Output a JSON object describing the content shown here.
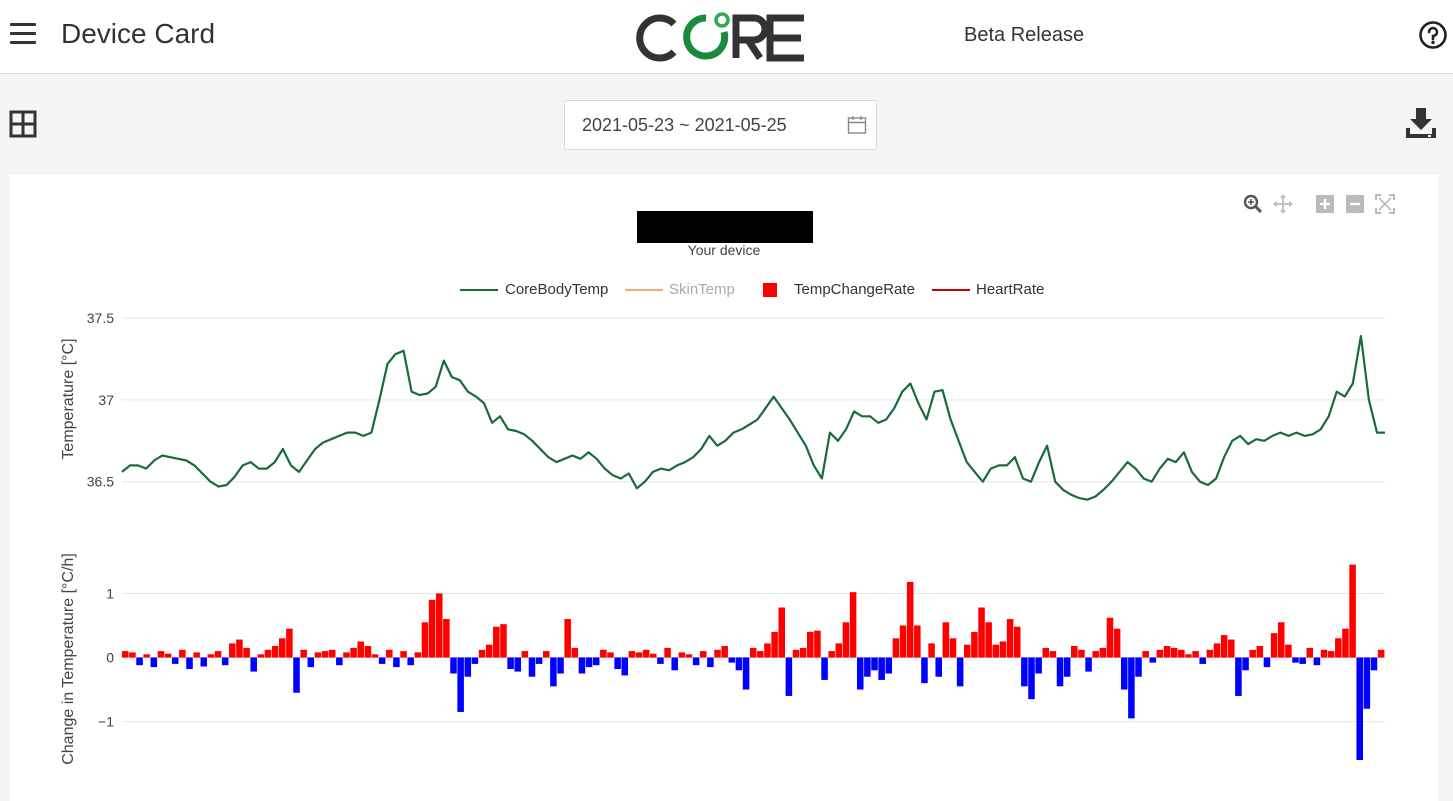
{
  "header": {
    "title": "Device Card",
    "logo_text": "CORE",
    "release": "Beta Release"
  },
  "toolbar": {
    "date_range": "2021-05-23 ~ 2021-05-25"
  },
  "chart": {
    "device_caption": "Your device",
    "legend": [
      {
        "name": "CoreBodyTemp",
        "color": "#1a6b3a",
        "kind": "line",
        "dimmed": false
      },
      {
        "name": "SkinTemp",
        "color": "#f4a97a",
        "kind": "line",
        "dimmed": true
      },
      {
        "name": "TempChangeRate",
        "color": "#ff0000",
        "kind": "square",
        "dimmed": false
      },
      {
        "name": "HeartRate",
        "color": "#cc0000",
        "kind": "line",
        "dimmed": false
      }
    ]
  },
  "chart_data": [
    {
      "type": "line",
      "ylabel": "Temperature [°C]",
      "ylim": [
        36.37,
        37.58
      ],
      "yticks": [
        36.5,
        37,
        37.5
      ],
      "grid": true,
      "series": [
        {
          "name": "CoreBodyTemp",
          "color": "#1a6b3a",
          "values": [
            36.56,
            36.6,
            36.6,
            36.58,
            36.63,
            36.66,
            36.65,
            36.64,
            36.63,
            36.6,
            36.55,
            36.5,
            36.47,
            36.48,
            36.53,
            36.6,
            36.62,
            36.58,
            36.58,
            36.62,
            36.7,
            36.6,
            36.56,
            36.63,
            36.7,
            36.74,
            36.76,
            36.78,
            36.8,
            36.8,
            36.78,
            36.8,
            37.0,
            37.22,
            37.28,
            37.3,
            37.05,
            37.03,
            37.04,
            37.08,
            37.24,
            37.14,
            37.12,
            37.05,
            37.02,
            36.98,
            36.86,
            36.9,
            36.82,
            36.81,
            36.79,
            36.75,
            36.7,
            36.65,
            36.62,
            36.64,
            36.66,
            36.64,
            36.68,
            36.64,
            36.58,
            36.54,
            36.52,
            36.55,
            36.46,
            36.5,
            36.56,
            36.58,
            36.57,
            36.6,
            36.62,
            36.65,
            36.7,
            36.78,
            36.72,
            36.75,
            36.8,
            36.82,
            36.85,
            36.88,
            36.95,
            37.02,
            36.95,
            36.88,
            36.8,
            36.72,
            36.6,
            36.52,
            36.8,
            36.75,
            36.82,
            36.93,
            36.9,
            36.9,
            36.86,
            36.88,
            36.95,
            37.05,
            37.1,
            36.98,
            36.88,
            37.05,
            37.06,
            36.88,
            36.75,
            36.62,
            36.56,
            36.5,
            36.58,
            36.6,
            36.6,
            36.65,
            36.52,
            36.5,
            36.62,
            36.72,
            36.5,
            36.45,
            36.42,
            36.4,
            36.39,
            36.41,
            36.45,
            36.5,
            36.56,
            36.62,
            36.58,
            36.52,
            36.5,
            36.58,
            36.64,
            36.62,
            36.68,
            36.56,
            36.5,
            36.48,
            36.52,
            36.65,
            36.75,
            36.78,
            36.73,
            36.76,
            36.75,
            36.78,
            36.8,
            36.78,
            36.8,
            36.78,
            36.79,
            36.82,
            36.9,
            37.05,
            37.02,
            37.1,
            37.39,
            37.0,
            36.8,
            36.8
          ]
        }
      ]
    },
    {
      "type": "bar",
      "ylabel": "Change in Temperature [°C/h]",
      "ylim": [
        -1.6,
        1.6
      ],
      "yticks": [
        -1,
        0,
        1
      ],
      "grid": true,
      "series": [
        {
          "name": "TempChangeRate",
          "color_positive": "#ff0000",
          "color_negative": "#0000ff",
          "values": [
            0.1,
            0.08,
            -0.12,
            0.05,
            -0.15,
            0.1,
            0.06,
            -0.1,
            0.12,
            -0.18,
            0.08,
            -0.14,
            0.05,
            0.1,
            -0.12,
            0.22,
            0.28,
            0.15,
            -0.22,
            0.05,
            0.12,
            0.18,
            0.3,
            0.45,
            -0.55,
            0.12,
            -0.15,
            0.08,
            0.1,
            0.12,
            -0.12,
            0.08,
            0.15,
            0.25,
            0.18,
            0.05,
            -0.1,
            0.12,
            -0.15,
            0.1,
            -0.12,
            0.08,
            0.55,
            0.9,
            1.0,
            0.6,
            -0.25,
            -0.85,
            -0.3,
            -0.1,
            0.12,
            0.2,
            0.48,
            0.52,
            -0.18,
            -0.22,
            0.1,
            -0.3,
            -0.1,
            0.1,
            -0.45,
            -0.25,
            0.6,
            0.15,
            -0.25,
            -0.15,
            -0.12,
            0.12,
            0.08,
            -0.18,
            -0.28,
            0.1,
            0.08,
            0.12,
            0.06,
            -0.1,
            0.15,
            -0.2,
            0.08,
            0.05,
            -0.12,
            0.1,
            -0.15,
            0.12,
            0.18,
            -0.08,
            -0.2,
            -0.5,
            0.15,
            0.1,
            0.22,
            0.4,
            0.78,
            -0.6,
            0.12,
            0.15,
            0.4,
            0.42,
            -0.35,
            0.1,
            0.22,
            0.55,
            1.02,
            -0.5,
            -0.3,
            -0.2,
            -0.35,
            -0.25,
            0.3,
            0.5,
            1.18,
            0.5,
            -0.4,
            0.22,
            -0.3,
            0.55,
            0.3,
            -0.45,
            0.2,
            0.4,
            0.78,
            0.55,
            0.2,
            0.25,
            0.6,
            0.48,
            -0.45,
            -0.65,
            -0.25,
            0.15,
            0.1,
            -0.45,
            -0.3,
            0.18,
            0.12,
            -0.22,
            0.1,
            0.15,
            0.62,
            0.45,
            -0.5,
            -0.95,
            -0.3,
            0.1,
            -0.08,
            0.12,
            0.18,
            0.15,
            0.12,
            0.05,
            0.1,
            -0.1,
            0.12,
            0.22,
            0.35,
            0.28,
            -0.6,
            -0.2,
            0.12,
            0.18,
            -0.15,
            0.38,
            0.55,
            0.2,
            -0.08,
            -0.1,
            0.15,
            -0.12,
            0.12,
            0.1,
            0.3,
            0.45,
            1.45,
            -1.6,
            -0.8,
            -0.2,
            0.12
          ]
        }
      ]
    }
  ]
}
